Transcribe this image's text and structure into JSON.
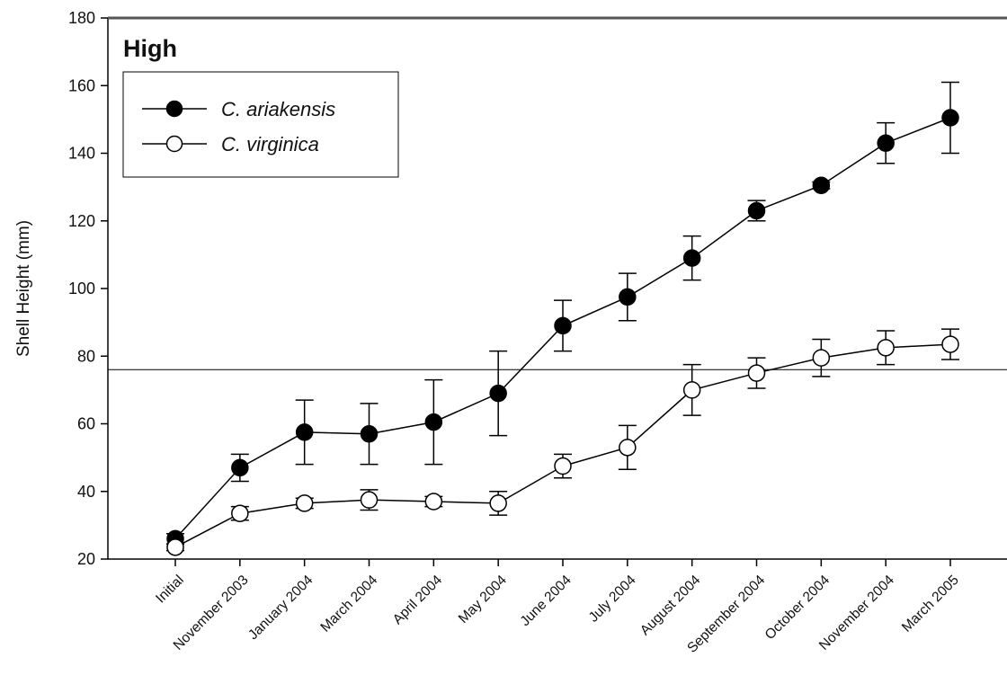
{
  "chart_data": {
    "type": "line",
    "panel_label": "High",
    "ylabel": "Shell Height (mm)",
    "xlabel": "",
    "ylim": [
      20,
      180
    ],
    "yticks": [
      20,
      40,
      60,
      80,
      100,
      120,
      140,
      160,
      180
    ],
    "reference_line_y": 76,
    "legend_position": "top-left",
    "categories": [
      "Initial",
      "November 2003",
      "January 2004",
      "March 2004",
      "April 2004",
      "May 2004",
      "June 2004",
      "July 2004",
      "August 2004",
      "September 2004",
      "October 2004",
      "November 2004",
      "March 2005"
    ],
    "series": [
      {
        "name": "C. ariakensis",
        "marker": "filled-circle",
        "color": "#000000",
        "values": [
          26,
          47,
          57.5,
          57,
          60.5,
          69,
          89,
          97.5,
          109,
          123,
          130.5,
          143,
          150.5
        ],
        "error": [
          1.5,
          4,
          9.5,
          9,
          12.5,
          12.5,
          7.5,
          7,
          6.5,
          3,
          1,
          6,
          10.5
        ]
      },
      {
        "name": "C. virginica",
        "marker": "open-circle",
        "color": "#000000",
        "values": [
          23.5,
          33.5,
          36.5,
          37.5,
          37,
          36.5,
          47.5,
          53,
          70,
          75,
          79.5,
          82.5,
          83.5
        ],
        "error": [
          1,
          2,
          1.5,
          3,
          1.5,
          3.5,
          3.5,
          6.5,
          7.5,
          4.5,
          5.5,
          5,
          4.5
        ]
      }
    ]
  }
}
